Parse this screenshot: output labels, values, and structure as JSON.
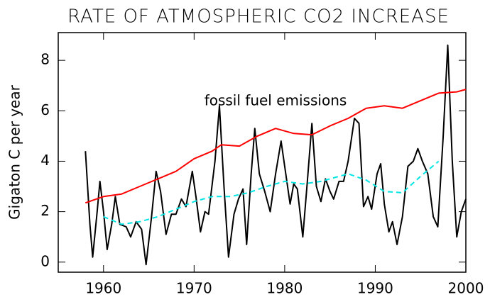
{
  "chart_data": {
    "type": "line",
    "title": "RATE OF ATMOSPHERIC CO2 INCREASE",
    "y_label": "Gigaton C per year",
    "annotation": "fossil fuel emissions",
    "xlim": [
      1955,
      2000
    ],
    "xticks": [
      1960,
      1970,
      1980,
      1990,
      2000
    ],
    "ylim": [
      -0.4,
      9.1
    ],
    "yticks": [
      0,
      2,
      4,
      6,
      8
    ],
    "series": [
      {
        "color": "#000000",
        "dash": false,
        "x": [
          1958.0,
          1958.5,
          1958.8,
          1959.3,
          1959.6,
          1960.0,
          1960.4,
          1960.9,
          1961.3,
          1961.8,
          1962.5,
          1963.0,
          1963.6,
          1964.2,
          1964.7,
          1965.3,
          1965.8,
          1966.3,
          1966.9,
          1967.5,
          1968.0,
          1968.6,
          1969.1,
          1969.8,
          1970.2,
          1970.7,
          1971.2,
          1971.6,
          1972.3,
          1972.8,
          1973.3,
          1973.8,
          1974.4,
          1974.9,
          1975.4,
          1975.8,
          1976.3,
          1976.7,
          1977.2,
          1977.8,
          1978.4,
          1979.0,
          1979.6,
          1980.0,
          1980.6,
          1981.0,
          1981.4,
          1982.0,
          1982.5,
          1983.0,
          1983.5,
          1984.0,
          1984.5,
          1985.0,
          1985.4,
          1986.0,
          1986.5,
          1987.0,
          1987.7,
          1988.2,
          1988.7,
          1989.2,
          1989.6,
          1990.2,
          1990.6,
          1991.0,
          1991.5,
          1991.9,
          1992.4,
          1993.0,
          1993.6,
          1994.2,
          1994.7,
          1995.2,
          1995.8,
          1996.4,
          1996.9,
          1997.5,
          1998.0,
          1998.5,
          1999.0,
          1999.5,
          2000.0
        ],
        "values": [
          4.4,
          1.5,
          0.2,
          2.0,
          3.2,
          2.0,
          0.5,
          1.5,
          2.6,
          1.5,
          1.4,
          1.0,
          1.6,
          1.3,
          -0.1,
          1.8,
          3.6,
          2.8,
          1.1,
          1.9,
          1.9,
          2.5,
          2.2,
          3.6,
          2.6,
          1.2,
          2.0,
          1.9,
          4.0,
          6.2,
          3.0,
          0.2,
          1.9,
          2.5,
          2.9,
          0.7,
          3.5,
          5.3,
          3.5,
          2.8,
          2.0,
          3.5,
          4.8,
          3.8,
          2.3,
          3.1,
          2.9,
          1.0,
          3.2,
          5.5,
          3.0,
          2.4,
          3.3,
          2.8,
          2.5,
          3.2,
          3.2,
          4.0,
          5.7,
          5.5,
          2.2,
          2.6,
          2.1,
          3.5,
          3.9,
          2.3,
          1.2,
          1.6,
          0.7,
          1.8,
          3.8,
          4.0,
          4.5,
          4.0,
          3.5,
          1.8,
          1.4,
          5.0,
          8.6,
          4.0,
          1.0,
          2.0,
          2.5
        ]
      },
      {
        "color": "#ff0000",
        "dash": false,
        "x": [
          1958,
          1960,
          1962,
          1964,
          1966,
          1968,
          1970,
          1972,
          1973,
          1975,
          1977,
          1979,
          1981,
          1983,
          1985,
          1987,
          1989,
          1991,
          1993,
          1995,
          1997,
          1999,
          2000
        ],
        "values": [
          2.35,
          2.6,
          2.7,
          3.0,
          3.3,
          3.6,
          4.1,
          4.4,
          4.65,
          4.6,
          5.0,
          5.3,
          5.1,
          5.05,
          5.4,
          5.7,
          6.1,
          6.2,
          6.1,
          6.4,
          6.7,
          6.75,
          6.85
        ]
      },
      {
        "color": "#00e5e5",
        "dash": true,
        "x": [
          1960,
          1962,
          1964,
          1966,
          1968,
          1970,
          1972,
          1974,
          1976,
          1978,
          1980,
          1982,
          1984,
          1986,
          1987,
          1989,
          1991,
          1993,
          1995,
          1997
        ],
        "values": [
          1.8,
          1.5,
          1.6,
          1.8,
          2.1,
          2.4,
          2.6,
          2.6,
          2.75,
          3.0,
          3.2,
          3.1,
          3.2,
          3.4,
          3.5,
          3.25,
          2.8,
          2.75,
          3.4,
          4.0
        ]
      }
    ]
  }
}
